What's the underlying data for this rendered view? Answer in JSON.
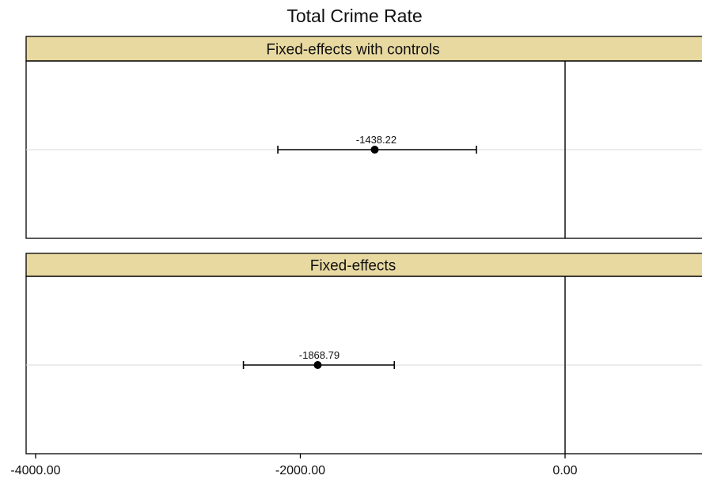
{
  "chart_data": {
    "type": "scatter",
    "title": "Total Crime Rate",
    "xlabel": "",
    "ylabel": "",
    "xlim": [
      -4000,
      0
    ],
    "x_ticks": [
      -4000,
      -2000,
      0
    ],
    "x_tick_labels": [
      "-4000.00",
      "-2000.00",
      "0.00"
    ],
    "reference_line": 0,
    "grid": false,
    "panels": [
      {
        "name": "Fixed-effects with controls",
        "estimate": -1438.22,
        "estimate_label": "-1438.22",
        "ci": [
          -2170,
          -670
        ]
      },
      {
        "name": "Fixed-effects",
        "estimate": -1868.79,
        "estimate_label": "-1868.79",
        "ci": [
          -2430,
          -1290
        ]
      }
    ]
  },
  "colors": {
    "strip_fill": "#e8d9a0",
    "frame": "#000000",
    "guide": "#d9d9d9",
    "marker": "#000000"
  }
}
